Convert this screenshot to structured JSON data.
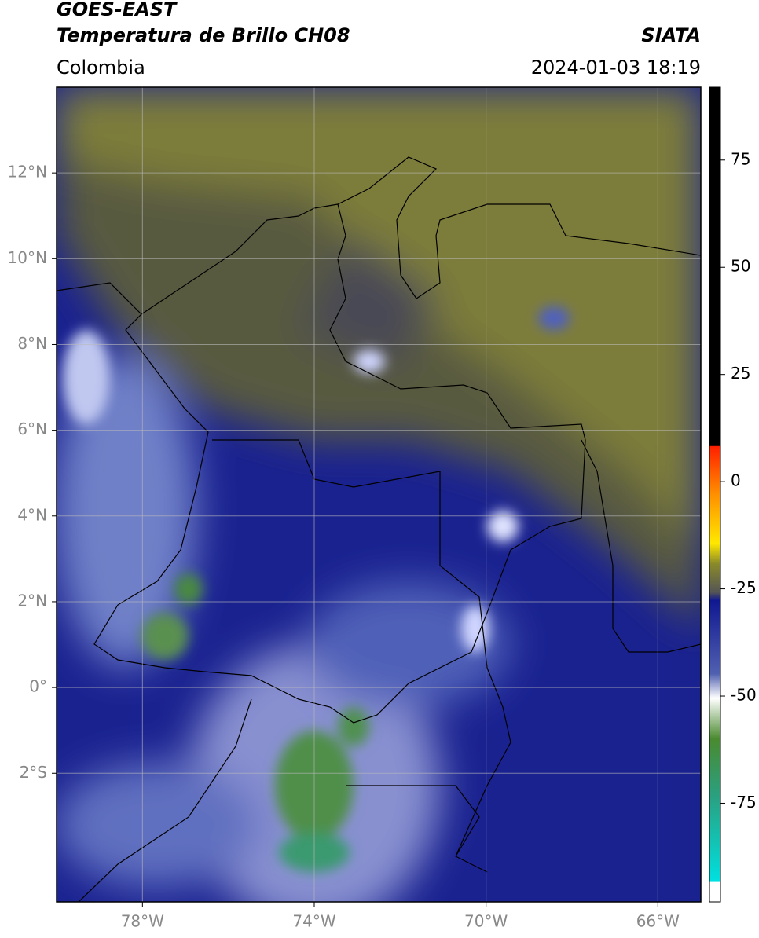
{
  "header": {
    "title": "GOES-EAST",
    "subtitle": "Temperatura de Brillo CH08",
    "source": "SIATA",
    "region": "Colombia",
    "datetime": "2024-01-03 18:19"
  },
  "map": {
    "xlim": [
      -80,
      -65
    ],
    "ylim": [
      -5,
      14
    ],
    "xticks": [
      {
        "value": -78,
        "label": "78°W"
      },
      {
        "value": -74,
        "label": "74°W"
      },
      {
        "value": -70,
        "label": "70°W"
      },
      {
        "value": -66,
        "label": "66°W"
      }
    ],
    "yticks": [
      {
        "value": 12,
        "label": "12°N"
      },
      {
        "value": 10,
        "label": "10°N"
      },
      {
        "value": 8,
        "label": "8°N"
      },
      {
        "value": 6,
        "label": "6°N"
      },
      {
        "value": 4,
        "label": "4°N"
      },
      {
        "value": 2,
        "label": "2°N"
      },
      {
        "value": 0,
        "label": "0°"
      },
      {
        "value": -2,
        "label": "2°S"
      }
    ],
    "grid": true
  },
  "colorbar": {
    "lim": [
      -98,
      92
    ],
    "ticks": [
      75,
      50,
      25,
      0,
      -25,
      -50,
      -75
    ]
  }
}
